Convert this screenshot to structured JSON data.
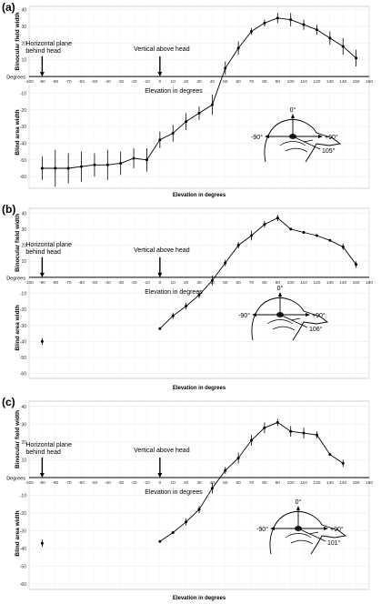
{
  "chart_data": [
    {
      "panel": "(a)",
      "type": "line",
      "xlim": [
        -100,
        160
      ],
      "x_ticks": [
        -100,
        -90,
        -80,
        -70,
        -60,
        -50,
        -40,
        -30,
        -20,
        -10,
        0,
        10,
        20,
        30,
        40,
        50,
        60,
        70,
        80,
        90,
        100,
        110,
        120,
        130,
        140,
        150,
        160
      ],
      "x_tick_labels": [
        "-100",
        "-90",
        "-80",
        "-70",
        "-60",
        "-50",
        "-40",
        "-30",
        "-20",
        "-10",
        "0",
        "10",
        "20",
        "30",
        "40",
        "50",
        "60",
        "70",
        "80",
        "90",
        "100",
        "110",
        "120",
        "130",
        "140",
        "150",
        "160"
      ],
      "ylim": [
        -67,
        42
      ],
      "y_ticks": [
        40,
        30,
        20,
        10,
        0,
        -10,
        -20,
        -30,
        -40,
        -50,
        -60
      ],
      "y_tick_labels": [
        "40",
        "30",
        "20",
        "10",
        "Degrees",
        "-10",
        "-20",
        "-30",
        "-40",
        "-50",
        "-60"
      ],
      "ylabel_top": "Binocular field width",
      "ylabel_bottom": "Blind area width",
      "axis_caption": "Elevation in degrees",
      "xlabel": "Elevation in degrees",
      "annotations": {
        "horizontal_plane": {
          "x": -90,
          "text": "Horizontal plane behind head"
        },
        "vertical": {
          "x": 0,
          "text": "Vertical above head"
        }
      },
      "head_labels": {
        "top": "0°",
        "left": "-90°",
        "right": "+90°",
        "bill": "105°"
      },
      "points": [
        {
          "x": -90,
          "y": -55,
          "err": 7
        },
        {
          "x": -80,
          "y": -55,
          "err": 11
        },
        {
          "x": -70,
          "y": -55,
          "err": 9
        },
        {
          "x": -60,
          "y": -54,
          "err": 9
        },
        {
          "x": -50,
          "y": -53,
          "err": 7
        },
        {
          "x": -40,
          "y": -53,
          "err": 9
        },
        {
          "x": -30,
          "y": -52,
          "err": 7
        },
        {
          "x": -20,
          "y": -49,
          "err": 6
        },
        {
          "x": -10,
          "y": -50,
          "err": 7
        },
        {
          "x": 0,
          "y": -38,
          "err": 5
        },
        {
          "x": 10,
          "y": -34,
          "err": 5
        },
        {
          "x": 20,
          "y": -27,
          "err": 5
        },
        {
          "x": 30,
          "y": -22,
          "err": 4
        },
        {
          "x": 40,
          "y": -17,
          "err": 6
        },
        {
          "x": 50,
          "y": 5,
          "err": 4
        },
        {
          "x": 60,
          "y": 17,
          "err": 4
        },
        {
          "x": 70,
          "y": 27,
          "err": 2
        },
        {
          "x": 80,
          "y": 32,
          "err": 2
        },
        {
          "x": 90,
          "y": 35,
          "err": 3
        },
        {
          "x": 100,
          "y": 34,
          "err": 4
        },
        {
          "x": 110,
          "y": 31,
          "err": 3
        },
        {
          "x": 120,
          "y": 28,
          "err": 3
        },
        {
          "x": 130,
          "y": 23,
          "err": 4
        },
        {
          "x": 140,
          "y": 18,
          "err": 5
        },
        {
          "x": 150,
          "y": 11,
          "err": 5
        }
      ]
    },
    {
      "panel": "(b)",
      "type": "line",
      "xlim": [
        -100,
        160
      ],
      "x_ticks": [
        -100,
        -90,
        -80,
        -70,
        -60,
        -50,
        -40,
        -30,
        -20,
        -10,
        0,
        10,
        20,
        30,
        40,
        50,
        60,
        70,
        80,
        90,
        100,
        110,
        120,
        130,
        140,
        150,
        160
      ],
      "x_tick_labels": [
        "-100",
        "-90",
        "-80",
        "-70",
        "-60",
        "-50",
        "-40",
        "-30",
        "-20",
        "-10",
        "0",
        "10",
        "20",
        "30",
        "40",
        "50",
        "60",
        "70",
        "80",
        "90",
        "100",
        "110",
        "120",
        "130",
        "140",
        "150",
        "160"
      ],
      "ylim": [
        -63,
        43
      ],
      "y_ticks": [
        40,
        30,
        20,
        10,
        0,
        -10,
        -20,
        -30,
        -40,
        -50,
        -60
      ],
      "y_tick_labels": [
        "40",
        "30",
        "20",
        "10",
        "Degrees",
        "-10",
        "-20",
        "-30",
        "-40",
        "-50",
        "-60"
      ],
      "ylabel_top": "Binocular field width",
      "ylabel_bottom": "Blind area width",
      "axis_caption": "Elevation in degrees",
      "xlabel": "Elevation in degrees",
      "annotations": {
        "horizontal_plane": {
          "x": -90,
          "text": "Horizontal plane behind head"
        },
        "vertical": {
          "x": 0,
          "text": "Vertical above head"
        }
      },
      "head_labels": {
        "top": "0°",
        "left": "-90°",
        "right": "+90°",
        "bill": "106°"
      },
      "isolated_point": {
        "x": -90,
        "y": -40,
        "err": 2
      },
      "points": [
        {
          "x": 0,
          "y": -32,
          "err": 0
        },
        {
          "x": 10,
          "y": -24,
          "err": 2
        },
        {
          "x": 20,
          "y": -18,
          "err": 2
        },
        {
          "x": 30,
          "y": -11,
          "err": 2
        },
        {
          "x": 40,
          "y": -2,
          "err": 3
        },
        {
          "x": 50,
          "y": 9,
          "err": 2
        },
        {
          "x": 60,
          "y": 20,
          "err": 2
        },
        {
          "x": 70,
          "y": 26,
          "err": 3
        },
        {
          "x": 80,
          "y": 33,
          "err": 2
        },
        {
          "x": 90,
          "y": 37,
          "err": 2
        },
        {
          "x": 100,
          "y": 30,
          "err": 0
        },
        {
          "x": 110,
          "y": 28,
          "err": 0
        },
        {
          "x": 120,
          "y": 26,
          "err": 0
        },
        {
          "x": 130,
          "y": 23,
          "err": 0
        },
        {
          "x": 140,
          "y": 19,
          "err": 2
        },
        {
          "x": 150,
          "y": 8,
          "err": 2
        }
      ]
    },
    {
      "panel": "(c)",
      "type": "line",
      "xlim": [
        -100,
        160
      ],
      "x_ticks": [
        -100,
        -90,
        -80,
        -70,
        -60,
        -50,
        -40,
        -30,
        -20,
        -10,
        0,
        10,
        20,
        30,
        40,
        50,
        60,
        70,
        80,
        90,
        100,
        110,
        120,
        130,
        140,
        150,
        160
      ],
      "x_tick_labels": [
        "-100",
        "-90",
        "-80",
        "-70",
        "-60",
        "-50",
        "-40",
        "-30",
        "-20",
        "-10",
        "0",
        "10",
        "20",
        "30",
        "40",
        "50",
        "60",
        "70",
        "80",
        "90",
        "100",
        "110",
        "120",
        "130",
        "140",
        "150",
        "160"
      ],
      "ylim": [
        -63,
        43
      ],
      "y_ticks": [
        40,
        30,
        20,
        10,
        0,
        -10,
        -20,
        -30,
        -40,
        -50,
        -60
      ],
      "y_tick_labels": [
        "40",
        "30",
        "20",
        "10",
        "Degrees",
        "-10",
        "-20",
        "-30",
        "-40",
        "-50",
        "-60"
      ],
      "ylabel_top": "Binocular field width",
      "ylabel_bottom": "Blind area width",
      "axis_caption": "Elevation in degrees",
      "xlabel": "Elevation in degrees",
      "annotations": {
        "horizontal_plane": {
          "x": -90,
          "text": "Horizontal plane behind head"
        },
        "vertical": {
          "x": 0,
          "text": "Vertical above head"
        }
      },
      "head_labels": {
        "top": "0°",
        "left": "-90°",
        "right": "+90°",
        "bill": "101°"
      },
      "isolated_point": {
        "x": -90,
        "y": -37,
        "err": 2
      },
      "points": [
        {
          "x": 0,
          "y": -36,
          "err": 0
        },
        {
          "x": 10,
          "y": -31,
          "err": 0
        },
        {
          "x": 20,
          "y": -25,
          "err": 2
        },
        {
          "x": 30,
          "y": -18,
          "err": 2
        },
        {
          "x": 40,
          "y": -6,
          "err": 3
        },
        {
          "x": 50,
          "y": 4,
          "err": 2
        },
        {
          "x": 60,
          "y": 11,
          "err": 3
        },
        {
          "x": 70,
          "y": 21,
          "err": 3
        },
        {
          "x": 80,
          "y": 28,
          "err": 3
        },
        {
          "x": 90,
          "y": 31,
          "err": 2
        },
        {
          "x": 100,
          "y": 26,
          "err": 3
        },
        {
          "x": 110,
          "y": 25,
          "err": 3
        },
        {
          "x": 120,
          "y": 24,
          "err": 2
        },
        {
          "x": 130,
          "y": 13,
          "err": 0
        },
        {
          "x": 140,
          "y": 8,
          "err": 2
        }
      ]
    }
  ]
}
